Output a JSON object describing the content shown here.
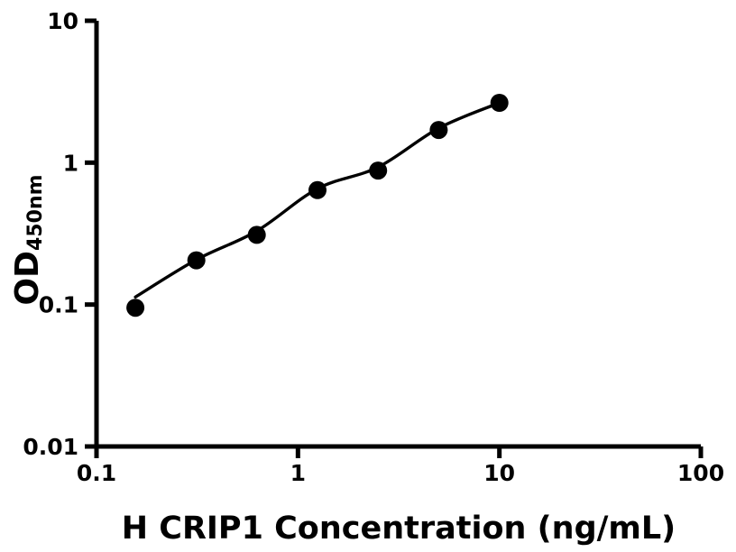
{
  "chart_data": {
    "type": "scatter",
    "title": "",
    "xlabel": "H CRIP1 Concentration (ng/mL)",
    "ylabel_main": "OD",
    "ylabel_sub": "450nm",
    "x_scale": "log",
    "y_scale": "log",
    "xlim": [
      0.1,
      100
    ],
    "ylim": [
      0.01,
      10
    ],
    "x_ticks": [
      {
        "value": 0.1,
        "label": "0.1"
      },
      {
        "value": 1,
        "label": "1"
      },
      {
        "value": 10,
        "label": "10"
      },
      {
        "value": 100,
        "label": "100"
      }
    ],
    "y_ticks": [
      {
        "value": 0.01,
        "label": "0.01"
      },
      {
        "value": 0.1,
        "label": "0.1"
      },
      {
        "value": 1,
        "label": "1"
      },
      {
        "value": 10,
        "label": "10"
      }
    ],
    "series": [
      {
        "name": "standard-points",
        "type": "scatter",
        "x": [
          0.156,
          0.313,
          0.625,
          1.25,
          2.5,
          5,
          10
        ],
        "y": [
          0.095,
          0.205,
          0.31,
          0.64,
          0.88,
          1.7,
          2.64
        ]
      },
      {
        "name": "fit-curve",
        "type": "line",
        "x": [
          0.156,
          0.313,
          0.625,
          1.25,
          2.5,
          5,
          10
        ],
        "y": [
          0.113,
          0.207,
          0.33,
          0.655,
          0.93,
          1.75,
          2.64
        ]
      }
    ],
    "grid": false,
    "legend": null,
    "colors": {
      "marker": "#000000",
      "line": "#000000",
      "axis": "#000000",
      "background": "#ffffff"
    }
  }
}
